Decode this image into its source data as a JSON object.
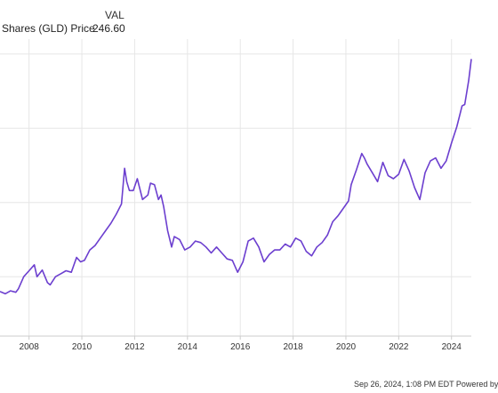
{
  "legend": {
    "header": "VAL",
    "series_name": "Shares (GLD) Price",
    "series_value": "246.60"
  },
  "footer": {
    "text": "Sep 26, 2024, 1:08 PM EDT Powered by"
  },
  "colors": {
    "line": "#6c3fcf",
    "grid": "#e6e6e6",
    "axis": "#cccccc",
    "text": "#333333"
  },
  "chart_data": {
    "type": "line",
    "title": "",
    "xlabel": "",
    "ylabel": "",
    "grid": true,
    "legend_placement": "top-left",
    "x_ticks": [
      2008,
      2010,
      2012,
      2014,
      2016,
      2018,
      2020,
      2022,
      2024
    ],
    "xlim": [
      2006.9,
      2024.75
    ],
    "ylim": [
      60,
      260
    ],
    "y_gridlines": [
      100,
      150,
      200,
      250
    ],
    "series": [
      {
        "name": "Shares (GLD) Price",
        "x": [
          2006.9,
          2007.1,
          2007.3,
          2007.5,
          2007.6,
          2007.8,
          2008.0,
          2008.2,
          2008.3,
          2008.5,
          2008.7,
          2008.8,
          2009.0,
          2009.2,
          2009.4,
          2009.6,
          2009.8,
          2009.95,
          2010.1,
          2010.3,
          2010.5,
          2010.7,
          2010.9,
          2011.1,
          2011.3,
          2011.5,
          2011.62,
          2011.7,
          2011.8,
          2011.95,
          2012.1,
          2012.3,
          2012.5,
          2012.6,
          2012.75,
          2012.9,
          2013.0,
          2013.1,
          2013.25,
          2013.4,
          2013.5,
          2013.7,
          2013.9,
          2014.1,
          2014.3,
          2014.5,
          2014.7,
          2014.9,
          2015.1,
          2015.3,
          2015.5,
          2015.7,
          2015.9,
          2016.1,
          2016.3,
          2016.5,
          2016.7,
          2016.9,
          2017.1,
          2017.3,
          2017.5,
          2017.7,
          2017.9,
          2018.1,
          2018.3,
          2018.5,
          2018.7,
          2018.9,
          2019.1,
          2019.3,
          2019.5,
          2019.7,
          2019.9,
          2020.1,
          2020.2,
          2020.4,
          2020.6,
          2020.7,
          2020.8,
          2021.0,
          2021.2,
          2021.4,
          2021.6,
          2021.8,
          2022.0,
          2022.2,
          2022.4,
          2022.6,
          2022.8,
          2023.0,
          2023.2,
          2023.4,
          2023.6,
          2023.8,
          2024.0,
          2024.2,
          2024.4,
          2024.5,
          2024.65,
          2024.75
        ],
        "y": [
          90.0,
          88.5,
          90.5,
          89.5,
          92.0,
          100.0,
          104.0,
          108.0,
          100.0,
          104.5,
          96.0,
          94.5,
          100.0,
          102.0,
          104.0,
          103.0,
          113.0,
          110.0,
          111.0,
          118.0,
          121.0,
          126.0,
          131.0,
          136.0,
          142.0,
          149.0,
          173.0,
          164.0,
          158.0,
          158.0,
          166.0,
          152.0,
          155.0,
          163.0,
          162.0,
          152.0,
          155.0,
          147.0,
          131.0,
          120.0,
          127.0,
          125.0,
          118.0,
          120.0,
          124.0,
          123.0,
          120.0,
          116.0,
          120.0,
          116.0,
          112.0,
          111.0,
          103.0,
          110.0,
          124.0,
          126.0,
          120.0,
          110.0,
          115.0,
          118.0,
          118.0,
          122.0,
          120.0,
          126.0,
          124.0,
          117.0,
          114.0,
          120.0,
          123.0,
          128.0,
          137.0,
          141.0,
          146.0,
          151.0,
          162.0,
          172.0,
          183.0,
          180.0,
          176.0,
          170.0,
          164.0,
          177.0,
          168.0,
          166.0,
          169.0,
          179.0,
          171.0,
          160.0,
          152.0,
          170.0,
          178.0,
          180.0,
          173.0,
          178.0,
          190.0,
          201.0,
          215.0,
          216.0,
          232.0,
          246.6
        ]
      }
    ]
  }
}
